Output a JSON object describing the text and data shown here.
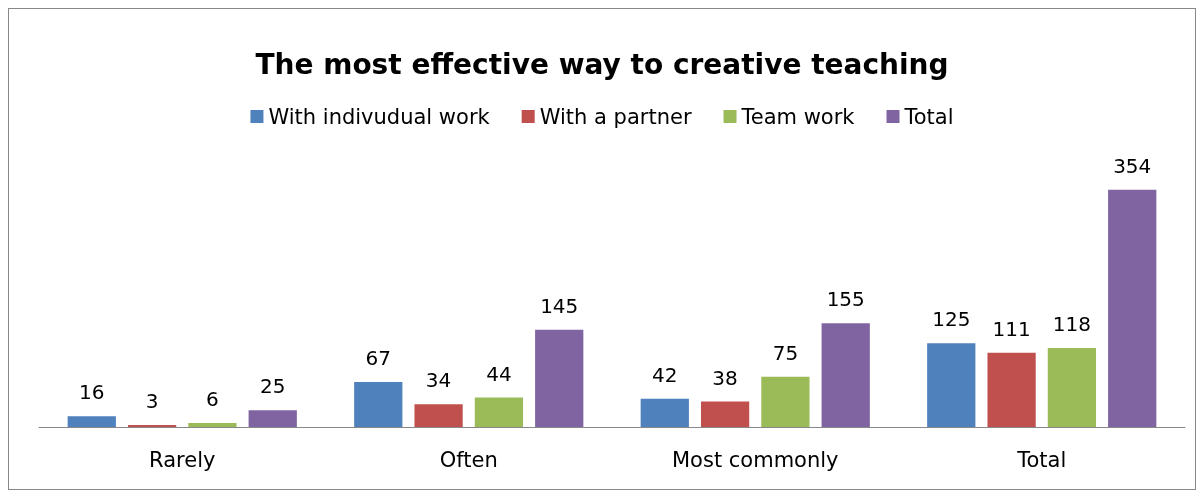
{
  "chart_data": {
    "type": "bar",
    "title": "The most effective way to creative teaching",
    "categories": [
      "Rarely",
      "Often",
      "Most commonly",
      "Total"
    ],
    "series": [
      {
        "name": "With indivudual work",
        "color": "#4f81bd",
        "values": [
          16,
          67,
          42,
          125
        ]
      },
      {
        "name": "With a partner",
        "color": "#c0504d",
        "values": [
          3,
          34,
          38,
          111
        ]
      },
      {
        "name": "Team work",
        "color": "#9bbb59",
        "values": [
          6,
          44,
          75,
          118
        ]
      },
      {
        "name": "Total",
        "color": "#8064a2",
        "values": [
          25,
          145,
          155,
          354
        ]
      }
    ],
    "data_labels": true,
    "legend": "top",
    "grid": false
  }
}
